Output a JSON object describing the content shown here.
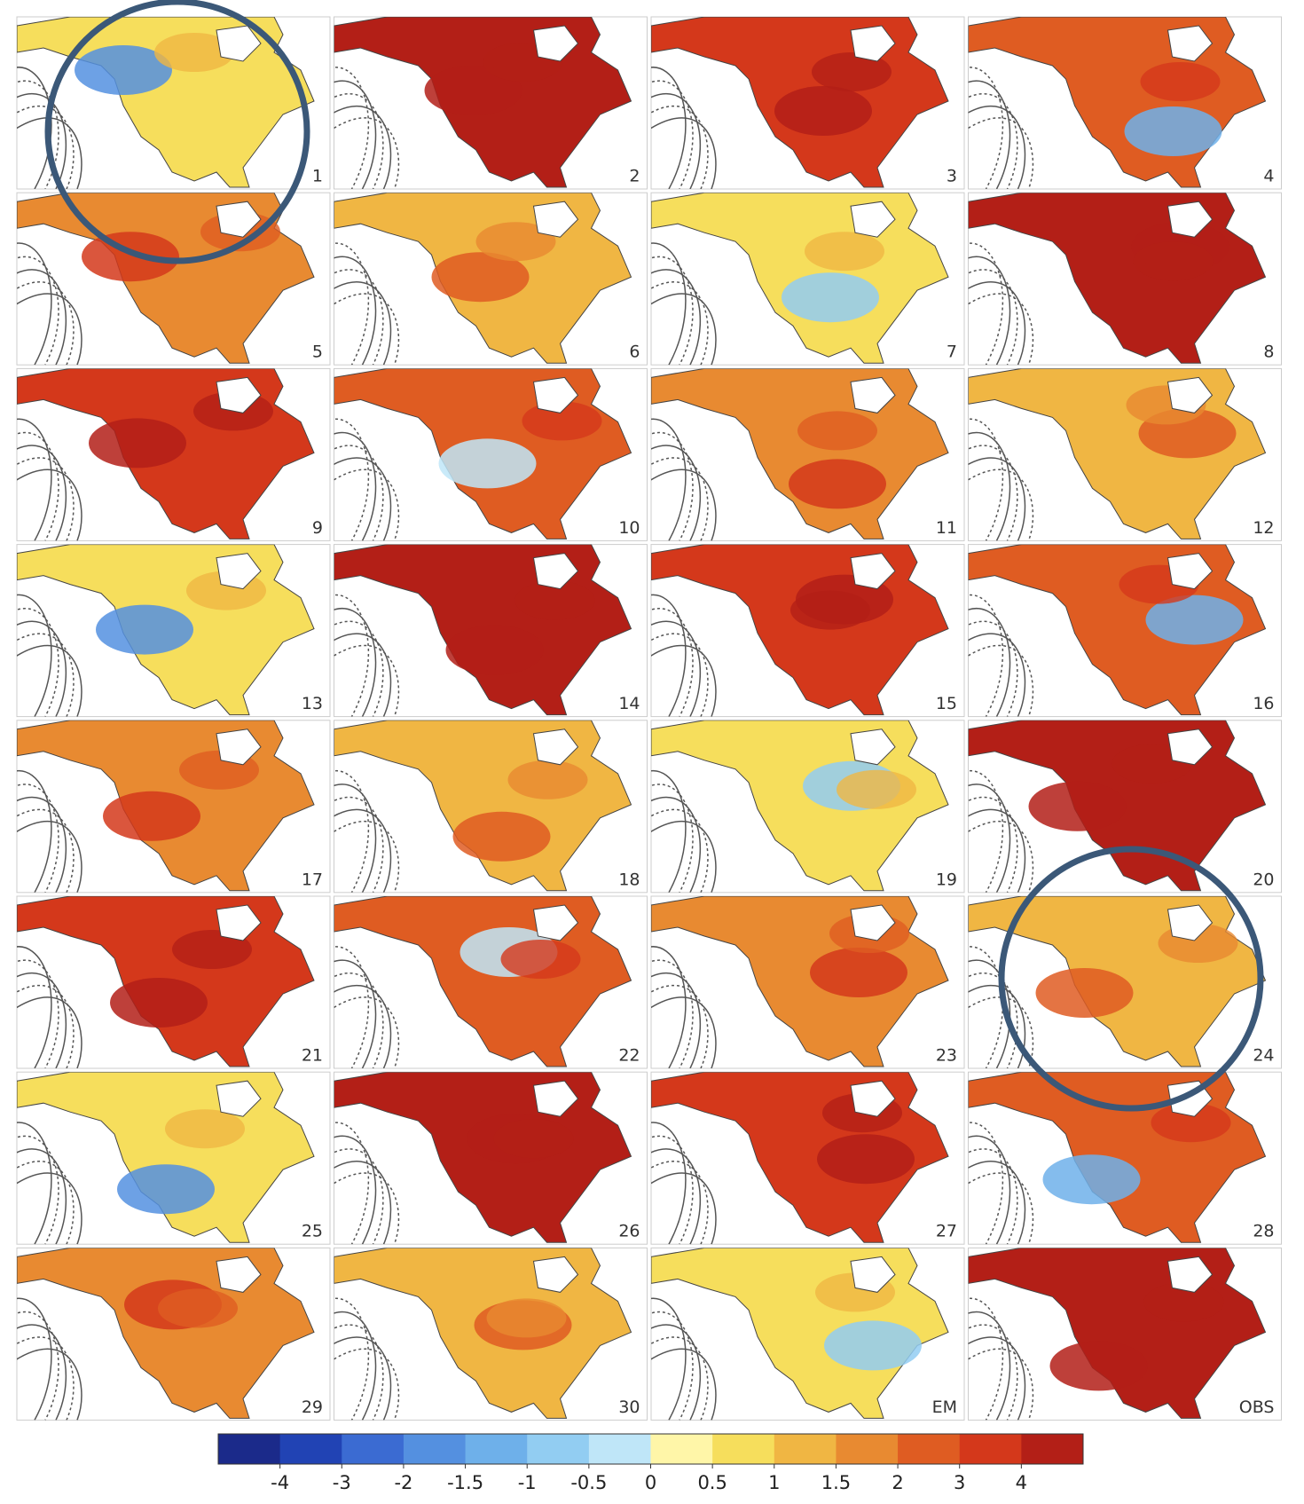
{
  "chart_data": {
    "type": "map-grid",
    "panel_labels": [
      "1",
      "2",
      "3",
      "4",
      "5",
      "6",
      "7",
      "8",
      "9",
      "10",
      "11",
      "12",
      "13",
      "14",
      "15",
      "16",
      "17",
      "18",
      "19",
      "20",
      "21",
      "22",
      "23",
      "24",
      "25",
      "26",
      "27",
      "28",
      "29",
      "30",
      "EM",
      "OBS"
    ],
    "colorbar": {
      "ticks": [
        -4,
        -3,
        -2,
        -1.5,
        -1,
        -0.5,
        0,
        0.5,
        1,
        1.5,
        2,
        3,
        4
      ],
      "colors": [
        "#1b2a8a",
        "#2143b4",
        "#3b6bd2",
        "#5490e0",
        "#6eb0ea",
        "#92cdf2",
        "#bfe6f8",
        "#fff6a8",
        "#f6de5c",
        "#f0b643",
        "#e88a31",
        "#df5c22",
        "#d4381b",
        "#b31f17"
      ]
    },
    "highlight_color": "#3b5878"
  }
}
